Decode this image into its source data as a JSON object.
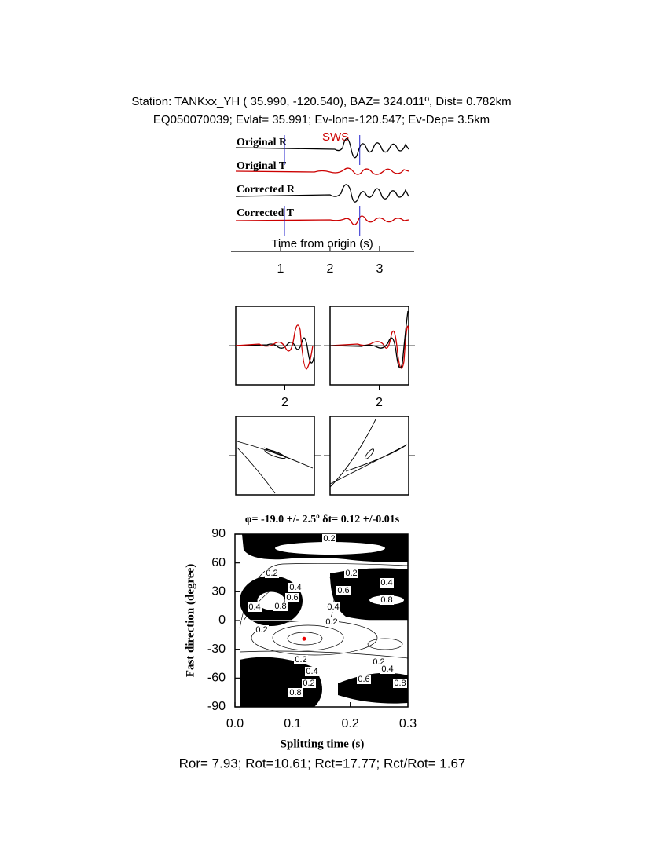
{
  "header": {
    "line1": "Station: TANKxx_YH ( 35.990, -120.540), BAZ=  324.011º, Dist=    0.782km",
    "line2": "EQ050070039; Evlat=  35.991; Ev-lon=-120.547; Ev-Dep=  3.5km"
  },
  "chart_data": [
    {
      "type": "waveform",
      "annotation": "SWS",
      "xlabel": "Time from origin (s)",
      "xlim": [
        0,
        3.7
      ],
      "xticks": [
        1,
        2,
        3
      ],
      "markers": [
        1.08,
        2.6
      ],
      "marker_color": "#2222cc",
      "series": [
        {
          "name": "Original R",
          "color": "#000000"
        },
        {
          "name": "Original T",
          "color": "#cc0000"
        },
        {
          "name": "Corrected R",
          "color": "#000000"
        },
        {
          "name": "Corrected T",
          "color": "#cc0000"
        }
      ]
    },
    {
      "type": "waveform-window",
      "xlim": [
        1.0,
        2.6
      ],
      "xticks": [
        2
      ]
    },
    {
      "type": "waveform-window",
      "xlim": [
        1.0,
        2.6
      ],
      "xticks": [
        2
      ]
    },
    {
      "type": "contour",
      "title": "φ= -19.0 +/- 2.5º δt= 0.12 +/-0.01s",
      "xlabel": "Splitting time (s)",
      "ylabel": "Fast direction (degree)",
      "xlim": [
        0,
        0.3
      ],
      "ylim": [
        -90,
        90
      ],
      "xticks": [
        {
          "value": 0,
          "label": "0.0"
        },
        {
          "value": 0.1,
          "label": "0.1"
        },
        {
          "value": 0.2,
          "label": "0.2"
        },
        {
          "value": 0.3,
          "label": "0.3"
        }
      ],
      "yticks": [
        -90,
        -60,
        -30,
        0,
        30,
        60,
        90
      ],
      "best": {
        "x": 0.12,
        "y": -19.0,
        "color": "#ee0000"
      },
      "contour_labels": [
        0.2,
        0.2,
        0.2,
        0.4,
        0.4,
        0.6,
        0.6,
        0.4,
        0.8,
        0.8,
        0.4,
        0.2,
        0.2,
        0.2,
        0.2,
        0.4,
        0.4,
        0.6,
        0.2,
        0.8,
        0.8
      ]
    }
  ],
  "footer": "Ror= 7.93; Rot=10.61; Rct=17.77; Rct/Rot= 1.67"
}
